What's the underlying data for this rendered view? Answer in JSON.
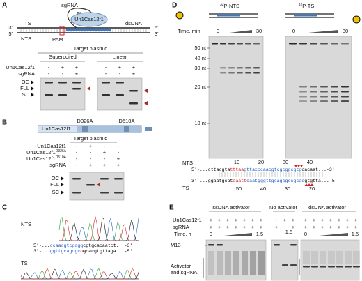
{
  "A": {
    "label": "A",
    "sgRNA": "sgRNA",
    "protein": "Un1Cas12f1",
    "ts": "TS",
    "nts": "NTS",
    "dsDNA": "dsDNA",
    "pam": "PAM",
    "ends": [
      "3'",
      "5'",
      "5'",
      "3'",
      "5'"
    ],
    "target": "Target plasmid",
    "groups": [
      "Supercoiled",
      "Linear"
    ],
    "rows": [
      {
        "name": "Un1Cas12f1",
        "signs": [
          "-",
          "+",
          "+",
          "-",
          "+",
          "+"
        ]
      },
      {
        "name": "sgRNA",
        "signs": [
          "-",
          "-",
          "+",
          "-",
          "-",
          "+"
        ]
      }
    ],
    "bands": [
      "OC",
      "FLL",
      "SC"
    ]
  },
  "B": {
    "label": "B",
    "domain": "Un1Cas12f1",
    "mutants": [
      "D326A",
      "D510A"
    ],
    "target": "Target plasmid",
    "rows": [
      {
        "name": "Un1Cas12f1",
        "signs": [
          "-",
          "+",
          "-",
          "-"
        ]
      },
      {
        "name": "Un1Cas12f1",
        "sup": "D326A",
        "signs": [
          "-",
          "-",
          "+",
          "-"
        ]
      },
      {
        "name": "Un1Cas12f1",
        "sup": "D510A",
        "signs": [
          "-",
          "-",
          "-",
          "+"
        ]
      },
      {
        "name": "sgRNA",
        "signs": [
          "-",
          "+",
          "+",
          "+"
        ]
      }
    ],
    "bands": [
      "OC",
      "FLL",
      "SC"
    ]
  },
  "C": {
    "label": "C",
    "nts": "NTS",
    "ts": "TS",
    "seq": [
      [
        {
          "text": "5'-...",
          "color": "#000000"
        },
        {
          "text": "ccaacgtcgcgg",
          "color": "#1f5fbf"
        },
        {
          "text": "cgtgcacaatct...-3'",
          "color": "#000000"
        }
      ],
      [
        {
          "text": "3'-...",
          "color": "#000000"
        },
        {
          "text": "ggttgcagcgcc",
          "color": "#1f5fbf"
        },
        {
          "text": "gcacgtgttaga...-5'",
          "color": "#000000"
        }
      ]
    ]
  },
  "D": {
    "label": "D",
    "probes": [
      {
        "sup": "32",
        "text": "P-NTS"
      },
      {
        "sup": "32",
        "text": "P-TS"
      }
    ],
    "time": "Time, min",
    "time_ends": [
      "0",
      "30",
      "0",
      "30"
    ],
    "markers": [
      "50 nt",
      "40 nt",
      "30 nt",
      "20 nt",
      "10 nt"
    ],
    "nts": "NTS",
    "ts": "TS",
    "top_numbers": [
      10,
      20,
      30,
      40
    ],
    "bottom_numbers": [
      50,
      40,
      30,
      20
    ],
    "seq": [
      [
        {
          "text": "5'-...cttacgta",
          "color": "#000000"
        },
        {
          "text": "tttaa",
          "color": "#d62020"
        },
        {
          "text": "gttacccaacgtcgcggcgtg",
          "color": "#1f5fbf"
        },
        {
          "text": "cacaat...-3'",
          "color": "#000000"
        }
      ],
      [
        {
          "text": "3'-...ggaatgcat",
          "color": "#000000"
        },
        {
          "text": "aaatt",
          "color": "#d62020"
        },
        {
          "text": "caatgggttgcagcgccgcac",
          "color": "#1f5fbf"
        },
        {
          "text": "gtgtta...-5'",
          "color": "#000000"
        }
      ]
    ]
  },
  "E": {
    "label": "E",
    "groups": [
      "ssDNA activator",
      "No activator",
      "dsDNA activator"
    ],
    "rows": [
      {
        "name": "Un1Cas12f1",
        "signs": [
          "+",
          "+",
          "+",
          "+",
          "+",
          "+",
          "+",
          "-",
          "+",
          "+",
          "+",
          "+",
          "+",
          "+",
          "+",
          "+",
          "+"
        ]
      },
      {
        "name": "sgRNA",
        "signs": [
          "+",
          "+",
          "+",
          "+",
          "+",
          "+",
          "+",
          "+",
          "-",
          "+",
          "+",
          "+",
          "+",
          "+",
          "+",
          "+",
          "+"
        ]
      }
    ],
    "time": "Time, h",
    "time_labels": [
      "0",
      "1.5",
      "1.5",
      "0",
      "1.5"
    ],
    "m13": "M13",
    "activator": [
      "Activator",
      "and sgRNA"
    ]
  }
}
